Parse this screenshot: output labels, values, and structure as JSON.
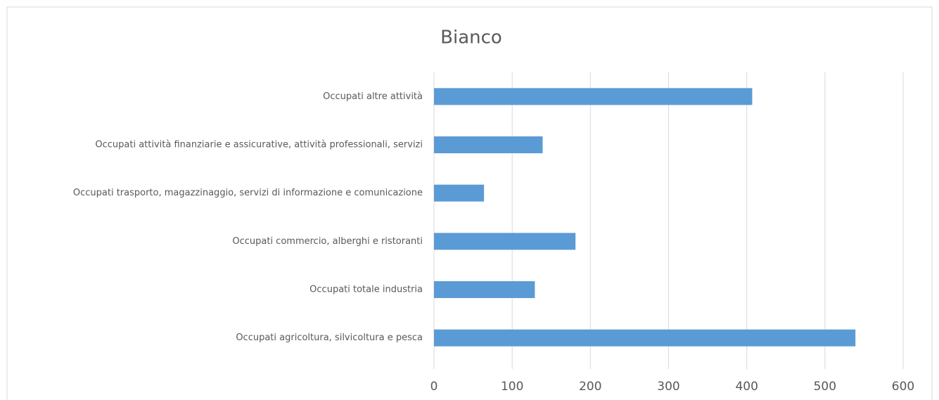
{
  "chart_data": {
    "type": "bar",
    "orientation": "horizontal",
    "title": "Bianco",
    "categories": [
      "Occupati altre attività",
      "Occupati attività finanziarie e assicurative, attività professionali, servizi",
      "Occupati trasporto, magazzinaggio, servizi di informazione e comunicazione",
      "Occupati commercio, alberghi e ristoranti",
      "Occupati totale industria",
      "Occupati agricoltura, silvicoltura e pesca"
    ],
    "values": [
      407,
      139,
      64,
      181,
      129,
      539
    ],
    "color": "#5b9bd5",
    "xlim": [
      0,
      600
    ],
    "xticks": [
      0,
      100,
      200,
      300,
      400,
      500,
      600
    ],
    "grid": true
  }
}
